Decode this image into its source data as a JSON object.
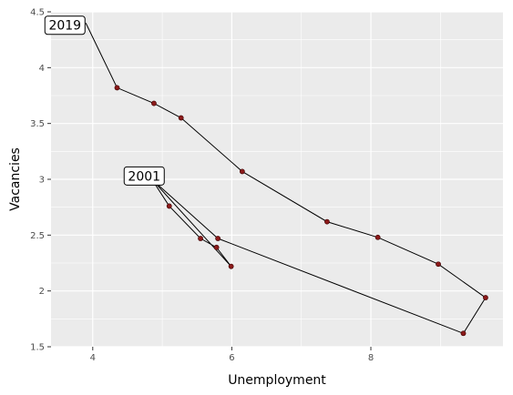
{
  "chart_data": {
    "type": "scatter",
    "title": "",
    "xlabel": "Unemployment",
    "ylabel": "Vacancies",
    "xlim": [
      3.4,
      9.9
    ],
    "ylim": [
      1.5,
      4.5
    ],
    "x_ticks": [
      4,
      6,
      8
    ],
    "x_tick_labels": [
      "4",
      "6",
      "8"
    ],
    "y_ticks": [
      1.5,
      2,
      2.5,
      3,
      3.5,
      4,
      4.5
    ],
    "y_tick_labels": [
      "1.5",
      "2",
      "2.5",
      "3",
      "3.5",
      "4",
      "4.5"
    ],
    "grid": true,
    "background": "#EBEBEB",
    "point_color": "#8B1A1A",
    "line_color": "#000000",
    "connected_path": true,
    "series": [
      {
        "points": [
          {
            "x": 4.85,
            "y": 3.0
          },
          {
            "x": 5.1,
            "y": 2.76
          },
          {
            "x": 5.55,
            "y": 2.47
          },
          {
            "x": 5.78,
            "y": 2.39
          },
          {
            "x": 5.99,
            "y": 2.22
          },
          {
            "x": 4.85,
            "y": 3.0
          },
          {
            "x": 5.8,
            "y": 2.47
          },
          {
            "x": 9.33,
            "y": 1.62
          },
          {
            "x": 9.65,
            "y": 1.94
          },
          {
            "x": 8.97,
            "y": 2.24
          },
          {
            "x": 8.1,
            "y": 2.48
          },
          {
            "x": 7.37,
            "y": 2.62
          },
          {
            "x": 6.15,
            "y": 3.07
          },
          {
            "x": 5.27,
            "y": 3.55
          },
          {
            "x": 4.88,
            "y": 3.68
          },
          {
            "x": 4.35,
            "y": 3.82
          },
          {
            "x": 3.9,
            "y": 4.4
          }
        ]
      }
    ],
    "annotations": [
      {
        "text": "2019",
        "x": 3.6,
        "y": 4.38
      },
      {
        "text": "2001",
        "x": 4.74,
        "y": 3.03
      }
    ]
  }
}
